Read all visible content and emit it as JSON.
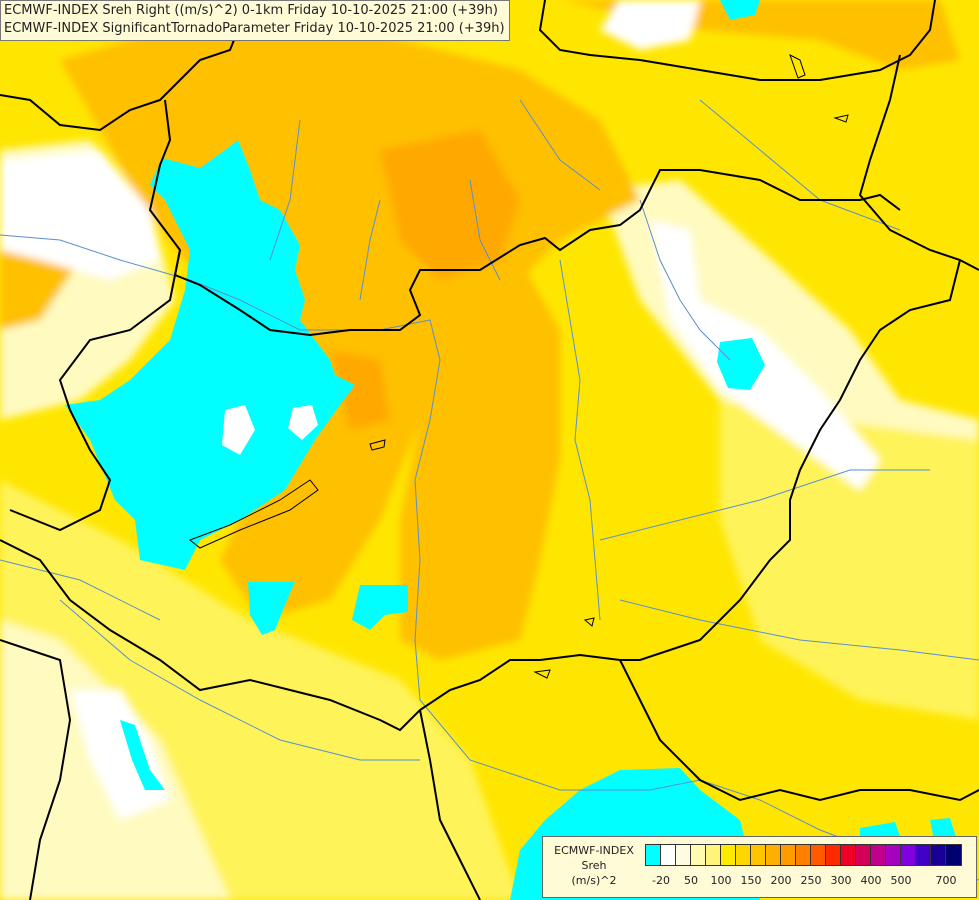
{
  "header": {
    "line1": "ECMWF-INDEX Sreh Right ((m/s)^2) 0-1km Friday 10-10-2025 21:00 (+39h)",
    "line2": "ECMWF-INDEX SignificantTornadoParameter Friday 10-10-2025 21:00 (+39h)"
  },
  "legend": {
    "caption_model": "ECMWF-INDEX",
    "caption_param": "Sreh",
    "caption_unit": "(m/s)^2",
    "colors": [
      "#00ffff",
      "#ffffff",
      "#fffde0",
      "#fffbb0",
      "#fff37a",
      "#ffeb00",
      "#ffd700",
      "#ffc400",
      "#ffb000",
      "#ff9c00",
      "#ff7f00",
      "#ff5a00",
      "#ff2a00",
      "#ef0024",
      "#d40058",
      "#c0008c",
      "#a600c0",
      "#8000e0",
      "#4000c8",
      "#1a0096",
      "#000070"
    ],
    "tick_labels": [
      "-20",
      "50",
      "100",
      "150",
      "200",
      "250",
      "300",
      "400",
      "500",
      "700"
    ]
  },
  "map": {
    "fill_colors": {
      "pale": "#fffac0",
      "light_yellow": "#fff35a",
      "yellow": "#ffe600",
      "gold": "#ffd500",
      "orange": "#ffc000",
      "dark_orange": "#ffa800",
      "white": "#ffffff",
      "cyan": "#00ffff",
      "border": "#000000",
      "river": "#5a8fcc"
    }
  }
}
